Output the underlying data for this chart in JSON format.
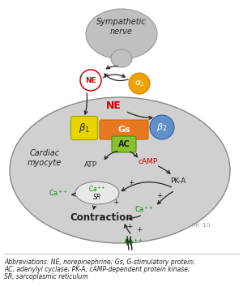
{
  "white": "#ffffff",
  "nerve_color": "#c0c0c0",
  "nerve_edge": "#999999",
  "myocyte_color": "#d0d0d0",
  "myocyte_edge": "#888888",
  "NE_circle_color": "#ffffff",
  "NE_circle_edge": "#cc0000",
  "alpha2_color": "#f0a000",
  "alpha2_edge": "#cc8800",
  "beta1_color": "#e8d400",
  "beta1_edge": "#aaaa00",
  "Gs_color": "#e87820",
  "Gs_edge": "#cc6600",
  "beta2_color": "#6090c8",
  "beta2_edge": "#3060a0",
  "AC_color": "#88c030",
  "AC_edge": "#558800",
  "SR_color": "#e8e8e8",
  "SR_edge": "#888888",
  "red": "#cc0000",
  "green": "#008800",
  "dark": "#222222",
  "gray": "#999999",
  "abbrev_text_line1": "Abbreviations: NE, norepinephrine; Gs, G-stimulatory protein;",
  "abbrev_text_line2": "AC, adenylyl cyclase; PK-A, cAMP-dependent protein kinase;",
  "abbrev_text_line3": "SR, sarcoplasmic reticulum"
}
